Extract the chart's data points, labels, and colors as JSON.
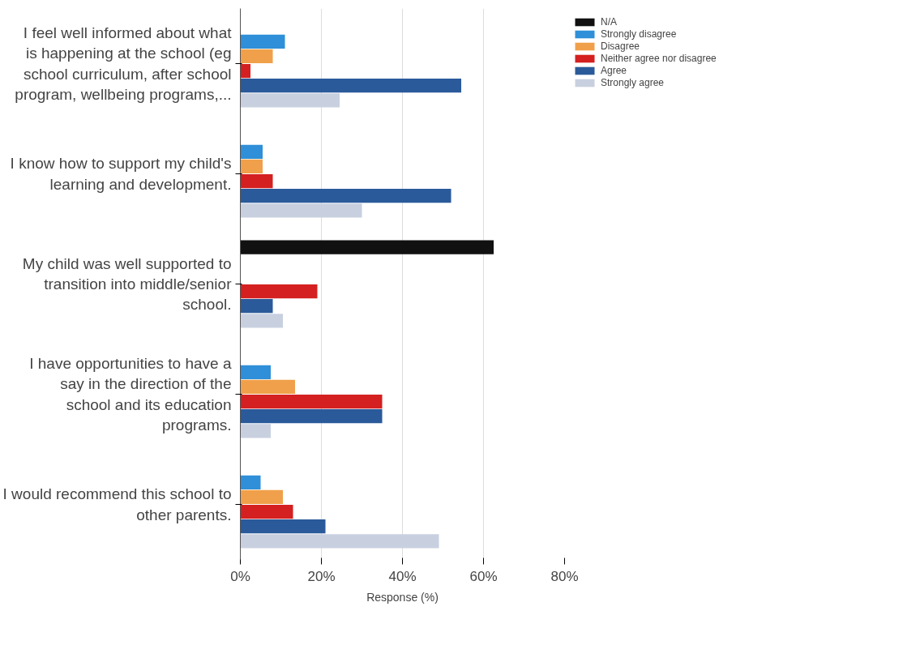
{
  "chart_data": {
    "type": "bar",
    "orientation": "horizontal",
    "xlabel": "Response (%)",
    "categories": [
      "I feel well informed about what is happening at the school (eg school curriculum, after school program, wellbeing programs,...",
      "I know how to support my child's learning and development.",
      "My child was well supported to transition into middle/senior school.",
      "I have opportunities to have a say in the direction of the school and its education programs.",
      "I would recommend this school to other parents."
    ],
    "series": [
      {
        "name": "N/A",
        "color": "#111111",
        "values": [
          null,
          null,
          62.5,
          null,
          null
        ]
      },
      {
        "name": "Strongly disagree",
        "color": "#2f8fd8",
        "values": [
          11,
          5.5,
          null,
          7.5,
          5
        ]
      },
      {
        "name": "Disagree",
        "color": "#f0a04a",
        "values": [
          8,
          5.5,
          null,
          13.5,
          10.5
        ]
      },
      {
        "name": "Neither agree nor disagree",
        "color": "#d42020",
        "values": [
          2.5,
          8,
          19,
          35,
          13
        ]
      },
      {
        "name": "Agree",
        "color": "#2a5a9a",
        "values": [
          54.5,
          52,
          8,
          35,
          21
        ]
      },
      {
        "name": "Strongly agree",
        "color": "#c8d0e0",
        "values": [
          24.5,
          30,
          10.5,
          7.5,
          49
        ]
      }
    ],
    "xlim": [
      0,
      80
    ],
    "xticks": [
      {
        "value": 0,
        "label": "0%"
      },
      {
        "value": 20,
        "label": "20%"
      },
      {
        "value": 40,
        "label": "40%"
      },
      {
        "value": 60,
        "label": "60%"
      },
      {
        "value": 80,
        "label": "80%"
      }
    ],
    "grid": "x",
    "legend": "top right"
  }
}
